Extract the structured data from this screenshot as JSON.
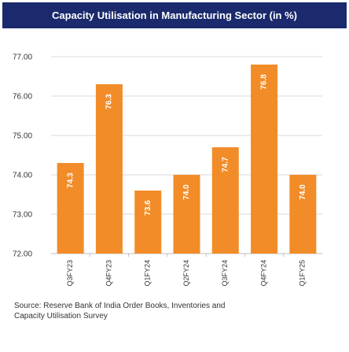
{
  "chart_data": {
    "type": "bar",
    "title": "Capacity Utilisation in Manufacturing Sector (in %)",
    "categories": [
      "Q3FY23",
      "Q4FY23",
      "Q1FY24",
      "Q2FY24",
      "Q3FY24",
      "Q4FY24",
      "Q1FY25"
    ],
    "values": [
      74.3,
      76.3,
      73.6,
      74.0,
      74.7,
      76.8,
      74.0
    ],
    "data_labels": [
      "74.3",
      "76.3",
      "73.6",
      "74.0",
      "74.7",
      "76.8",
      "74.0"
    ],
    "yticks": [
      "72.00",
      "73.00",
      "74.00",
      "75.00",
      "76.00",
      "77.00"
    ],
    "ylim": [
      72,
      77
    ],
    "xlabel": "",
    "ylabel": "",
    "grid": true,
    "legend": "none",
    "bar_color": "#f28c28",
    "title_bg_color": "#1a2a6c"
  },
  "source": {
    "line1": "Source: Reserve Bank of India Order Books, Inventories and",
    "line2": "Capacity Utilisation Survey"
  }
}
